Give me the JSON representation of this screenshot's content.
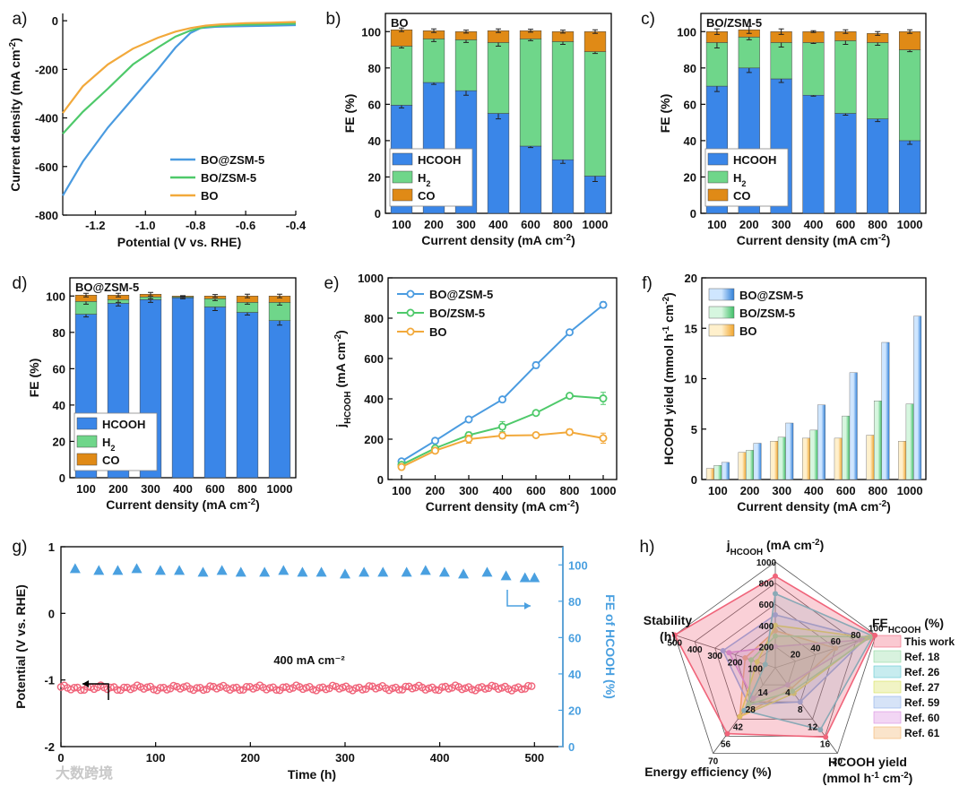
{
  "panel_labels": [
    "a)",
    "b)",
    "c)",
    "d)",
    "e)",
    "f)",
    "g)",
    "h)"
  ],
  "watermark": "大数跨境",
  "colors": {
    "hcooh": "#3a86e8",
    "h2": "#6fd68a",
    "co": "#e08a16",
    "bozsm": "#4a9be0",
    "bozsm5": "#4ec96a",
    "bo": "#f2a93b",
    "g_pot": "#f0647a",
    "g_fe": "#4aa0e0"
  },
  "chart_data": [
    {
      "id": "a",
      "type": "line",
      "xlabel": "Potential (V vs. RHE)",
      "ylabel": "Current density (mA cm⁻²)",
      "xlim": [
        -1.33,
        -0.4
      ],
      "ylim": [
        -800,
        30
      ],
      "xticks": [
        -1.2,
        -1.0,
        -0.8,
        -0.6,
        -0.4
      ],
      "xtick_labels": [
        "-1.2",
        "-1.0",
        "-0.8",
        "-0.6",
        "-0.4"
      ],
      "yticks": [
        0,
        -200,
        -400,
        -600,
        -800
      ],
      "ytick_labels": [
        "0",
        "-200",
        "-400",
        "-600",
        "-800"
      ],
      "series": [
        {
          "name": "BO@ZSM-5",
          "color": "#4a9be0",
          "x": [
            -1.33,
            -1.25,
            -1.15,
            -1.05,
            -0.95,
            -0.88,
            -0.82,
            -0.78,
            -0.72,
            -0.6,
            -0.5,
            -0.4
          ],
          "y": [
            -720,
            -580,
            -440,
            -320,
            -200,
            -110,
            -50,
            -30,
            -25,
            -22,
            -20,
            -18
          ]
        },
        {
          "name": "BO/ZSM-5",
          "color": "#4ec96a",
          "x": [
            -1.33,
            -1.25,
            -1.15,
            -1.05,
            -0.95,
            -0.88,
            -0.82,
            -0.76,
            -0.7,
            -0.6,
            -0.5,
            -0.4
          ],
          "y": [
            -465,
            -375,
            -280,
            -180,
            -110,
            -65,
            -40,
            -25,
            -20,
            -16,
            -14,
            -12
          ]
        },
        {
          "name": "BO",
          "color": "#f2a93b",
          "x": [
            -1.33,
            -1.25,
            -1.15,
            -1.05,
            -0.95,
            -0.88,
            -0.82,
            -0.76,
            -0.7,
            -0.6,
            -0.5,
            -0.4
          ],
          "y": [
            -380,
            -270,
            -180,
            -115,
            -70,
            -45,
            -30,
            -20,
            -15,
            -10,
            -8,
            -5
          ]
        }
      ]
    },
    {
      "id": "b",
      "type": "bar",
      "stacked": true,
      "title": "BO",
      "categories": [
        "100",
        "200",
        "300",
        "400",
        "600",
        "800",
        "1000"
      ],
      "xlabel": "Current density (mA cm⁻²)",
      "ylabel": "FE (%)",
      "ylim": [
        0,
        110
      ],
      "yticks": [
        0,
        20,
        40,
        60,
        80,
        100
      ],
      "series": [
        {
          "name": "HCOOH",
          "values": [
            59.5,
            72,
            67.5,
            55,
            37,
            29.5,
            20.5
          ],
          "err": [
            1.5,
            1,
            2.5,
            3,
            0.8,
            2,
            3
          ]
        },
        {
          "name": "H₂",
          "values": [
            32.5,
            24,
            28,
            39,
            59,
            65,
            68.5
          ],
          "err": [
            1,
            1.5,
            1.5,
            2,
            1,
            1.5,
            1
          ]
        },
        {
          "name": "CO",
          "values": [
            9,
            4.5,
            4.5,
            6.5,
            4.5,
            5.5,
            11
          ],
          "err": [
            1,
            1,
            0.8,
            1,
            0.8,
            0.8,
            1
          ]
        }
      ]
    },
    {
      "id": "c",
      "type": "bar",
      "stacked": true,
      "title": "BO/ZSM-5",
      "categories": [
        "100",
        "200",
        "300",
        "400",
        "600",
        "800",
        "1000"
      ],
      "xlabel": "Current density (mA cm⁻²)",
      "ylabel": "FE (%)",
      "ylim": [
        0,
        110
      ],
      "yticks": [
        0,
        20,
        40,
        60,
        80,
        100
      ],
      "series": [
        {
          "name": "HCOOH",
          "values": [
            70,
            80,
            74,
            65,
            55,
            52,
            40
          ],
          "err": [
            3,
            2.5,
            2,
            0.5,
            1,
            1.5,
            2
          ]
        },
        {
          "name": "H₂",
          "values": [
            24,
            17,
            20,
            29,
            40,
            42,
            50
          ],
          "err": [
            3,
            1.5,
            2.5,
            0.5,
            2,
            1.5,
            1
          ]
        },
        {
          "name": "CO",
          "values": [
            6,
            4,
            6,
            6,
            5,
            5,
            10
          ],
          "err": [
            1.5,
            2,
            1.5,
            0.5,
            1,
            1,
            1
          ]
        }
      ]
    },
    {
      "id": "d",
      "type": "bar",
      "stacked": true,
      "title": "BO@ZSM-5",
      "categories": [
        "100",
        "200",
        "300",
        "400",
        "600",
        "800",
        "1000"
      ],
      "xlabel": "Current density (mA cm⁻²)",
      "ylabel": "FE (%)",
      "ylim": [
        0,
        110
      ],
      "yticks": [
        0,
        20,
        40,
        60,
        80,
        100
      ],
      "series": [
        {
          "name": "HCOOH",
          "values": [
            90,
            96,
            98,
            99,
            94,
            91,
            86.5
          ],
          "err": [
            1.5,
            1.5,
            1.5,
            0.5,
            2,
            1.5,
            2.5
          ]
        },
        {
          "name": "H₂",
          "values": [
            7,
            2,
            1.5,
            0.5,
            4.5,
            5.5,
            10
          ],
          "err": [
            1.5,
            1.5,
            1,
            0.3,
            1,
            1,
            1.5
          ]
        },
        {
          "name": "CO",
          "values": [
            3.5,
            2.5,
            1.5,
            0.5,
            1.5,
            3.5,
            3.5
          ],
          "err": [
            1,
            1,
            1,
            0.2,
            0.8,
            1,
            1
          ]
        }
      ]
    },
    {
      "id": "e",
      "type": "line",
      "categories": [
        "100",
        "200",
        "300",
        "400",
        "600",
        "800",
        "1000"
      ],
      "xlabel": "Current density (mA cm⁻²)",
      "ylabel": "j_HCOOH (mA cm⁻²)",
      "ylim": [
        0,
        1000
      ],
      "yticks": [
        0,
        200,
        400,
        600,
        800,
        1000
      ],
      "series": [
        {
          "name": "BO@ZSM-5",
          "color": "#4a9be0",
          "values": [
            90,
            192,
            298,
            397,
            567,
            730,
            866
          ],
          "err": [
            8,
            8,
            10,
            10,
            15,
            8,
            15
          ]
        },
        {
          "name": "BO/ZSM-5",
          "color": "#4ec96a",
          "values": [
            73,
            155,
            220,
            262,
            330,
            415,
            402
          ],
          "err": [
            6,
            8,
            15,
            25,
            12,
            10,
            30
          ]
        },
        {
          "name": "BO",
          "color": "#f2a93b",
          "values": [
            62,
            143,
            200,
            218,
            220,
            235,
            205
          ],
          "err": [
            6,
            8,
            20,
            15,
            12,
            15,
            25
          ]
        }
      ]
    },
    {
      "id": "f",
      "type": "bar",
      "categories": [
        "100",
        "200",
        "300",
        "400",
        "600",
        "800",
        "1000"
      ],
      "xlabel": "Current density (mA cm⁻²)",
      "ylabel": "HCOOH yield (mmol h⁻¹ cm⁻²)",
      "ylim": [
        0,
        20
      ],
      "yticks": [
        0,
        5,
        10,
        15,
        20
      ],
      "series": [
        {
          "name": "BO@ZSM-5",
          "values": [
            1.7,
            3.6,
            5.6,
            7.4,
            10.6,
            13.6,
            16.2
          ]
        },
        {
          "name": "BO/ZSM-5",
          "values": [
            1.4,
            2.9,
            4.2,
            4.9,
            6.3,
            7.8,
            7.5
          ]
        },
        {
          "name": "BO",
          "values": [
            1.1,
            2.7,
            3.8,
            4.1,
            4.1,
            4.4,
            3.8
          ]
        }
      ]
    },
    {
      "id": "g",
      "type": "scatter",
      "xlabel": "Time (h)",
      "ylabel": "Potential (V vs. RHE)",
      "y2label": "FE of HCOOH (%)",
      "xlim": [
        0,
        530
      ],
      "ylim": [
        -2,
        1
      ],
      "y2lim": [
        0,
        110
      ],
      "xticks": [
        0,
        100,
        200,
        300,
        400,
        500
      ],
      "yticks": [
        -2,
        -1,
        0,
        1
      ],
      "y2ticks": [
        0,
        20,
        40,
        60,
        80,
        100
      ],
      "annotation": "400 mA cm⁻²",
      "potential": {
        "t_start": 0,
        "t_end": 500,
        "step": 3.5,
        "mean": -1.12
      },
      "fe": {
        "x": [
          15,
          40,
          60,
          80,
          105,
          125,
          150,
          170,
          190,
          215,
          235,
          255,
          275,
          300,
          320,
          340,
          365,
          385,
          405,
          425,
          450,
          470,
          490,
          500
        ],
        "y": [
          98,
          97,
          97,
          98,
          97,
          97,
          96,
          97,
          96,
          96,
          97,
          96,
          96,
          95,
          96,
          96,
          96,
          97,
          96,
          95,
          96,
          94,
          93,
          93
        ]
      }
    },
    {
      "id": "h",
      "type": "radar",
      "axes": [
        {
          "name": "j_HCOOH (mA cm⁻²)",
          "tick_labels": [
            "200",
            "400",
            "600",
            "800",
            "1000"
          ]
        },
        {
          "name": "FE_HCOOH (%)",
          "tick_labels": [
            "20",
            "40",
            "60",
            "80",
            "100"
          ]
        },
        {
          "name": "HCOOH yield (mmol h⁻¹ cm⁻²)",
          "tick_labels": [
            "4",
            "8",
            "12",
            "16",
            "20"
          ]
        },
        {
          "name": "Energy efficiency (%)",
          "tick_labels": [
            "14",
            "28",
            "42",
            "56",
            "70"
          ]
        },
        {
          "name": "Stability (h)",
          "tick_labels": [
            "100",
            "200",
            "300",
            "400",
            "500"
          ]
        }
      ],
      "series": [
        {
          "name": "This work",
          "color": "#f0647a",
          "values": [
            866,
            99,
            16.2,
            54,
            500
          ]
        },
        {
          "name": "Ref. 18",
          "color": "#8fd9a0",
          "values": [
            300,
            95,
            5.5,
            30,
            120
          ]
        },
        {
          "name": "Ref. 26",
          "color": "#5ec8d0",
          "values": [
            700,
            97,
            14.5,
            35,
            50
          ]
        },
        {
          "name": "Ref. 27",
          "color": "#d8e05a",
          "values": [
            400,
            92,
            6,
            40,
            90
          ]
        },
        {
          "name": "Ref. 59",
          "color": "#8aaee8",
          "values": [
            500,
            90,
            8,
            30,
            260
          ]
        },
        {
          "name": "Ref. 60",
          "color": "#d98ae0",
          "values": [
            200,
            85,
            4,
            25,
            230
          ]
        },
        {
          "name": "Ref. 61",
          "color": "#f2b36a",
          "values": [
            350,
            60,
            5,
            40,
            150
          ]
        }
      ]
    }
  ]
}
